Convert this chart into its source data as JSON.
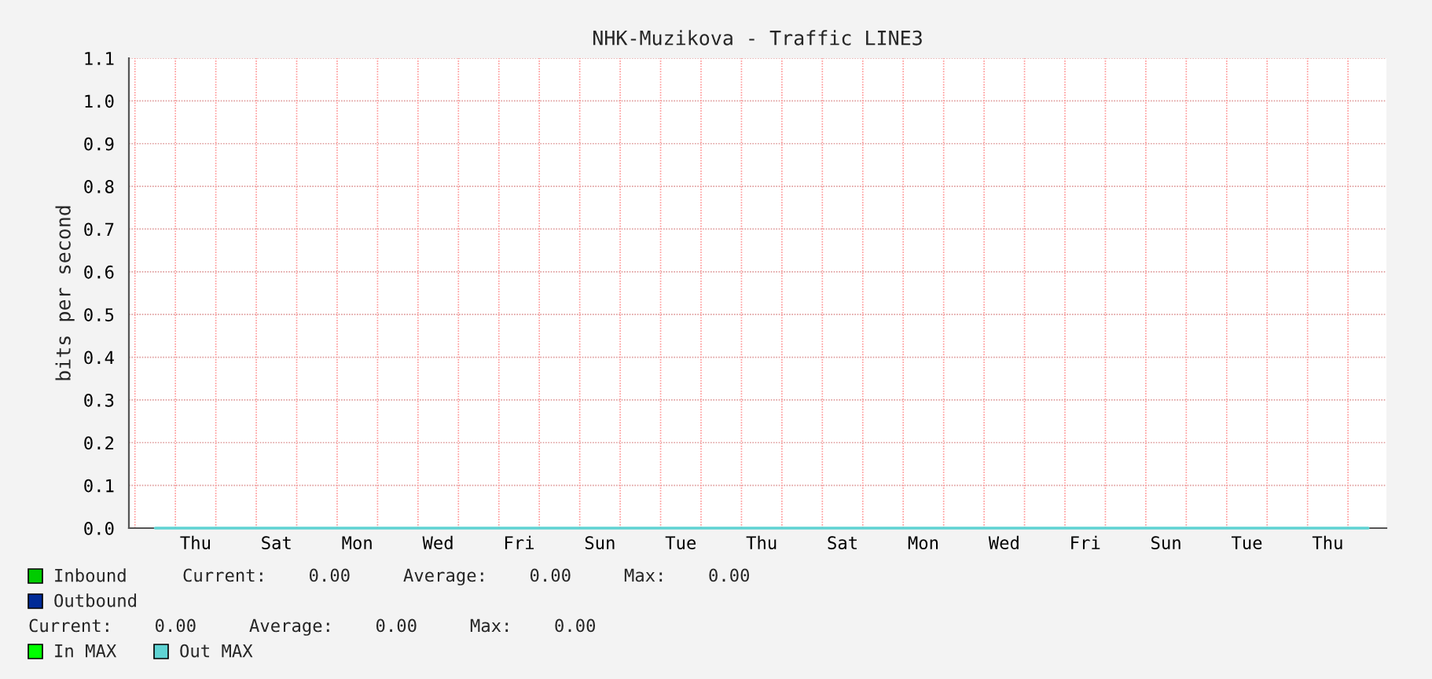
{
  "chart_data": {
    "type": "line",
    "title": "NHK-Muzikova - Traffic LINE3",
    "ylabel": "bits per second",
    "categories": [
      null,
      "Thu",
      null,
      "Sat",
      null,
      "Mon",
      null,
      "Wed",
      null,
      "Fri",
      null,
      "Sun",
      null,
      "Tue",
      null,
      "Thu",
      null,
      "Sat",
      null,
      "Mon",
      null,
      "Wed",
      null,
      "Fri",
      null,
      "Sun",
      null,
      "Tue",
      null,
      "Thu",
      null
    ],
    "ylim": [
      0,
      1.1
    ],
    "yticks": [
      {
        "value": 0,
        "label": "0.0"
      },
      {
        "value": 0.1,
        "label": "0.1"
      },
      {
        "value": 0.2,
        "label": "0.2"
      },
      {
        "value": 0.3,
        "label": "0.3"
      },
      {
        "value": 0.4,
        "label": "0.4"
      },
      {
        "value": 0.5,
        "label": "0.5"
      },
      {
        "value": 0.6,
        "label": "0.6"
      },
      {
        "value": 0.7,
        "label": "0.7"
      },
      {
        "value": 0.8,
        "label": "0.8"
      },
      {
        "value": 0.9,
        "label": "0.9"
      },
      {
        "value": 1.0,
        "label": "1.0"
      },
      {
        "value": 1.1,
        "label": "1.1"
      }
    ],
    "grid": true,
    "legend": "bottom",
    "series": [
      {
        "name": "Inbound",
        "color": "#00cc00",
        "values": [
          null,
          null,
          null,
          null,
          null,
          null,
          null,
          null,
          null,
          null,
          null,
          null,
          null,
          null,
          null,
          null,
          null,
          null,
          null,
          null,
          null,
          null,
          null,
          null,
          null,
          null,
          null,
          null,
          null,
          null,
          null
        ]
      },
      {
        "name": "Outbound",
        "color": "#002a97",
        "values": [
          null,
          null,
          null,
          null,
          null,
          null,
          null,
          null,
          null,
          null,
          null,
          null,
          null,
          null,
          null,
          null,
          null,
          null,
          null,
          null,
          null,
          null,
          null,
          null,
          null,
          null,
          null,
          null,
          null,
          null,
          null
        ]
      },
      {
        "name": "In MAX",
        "color": "#00ff00",
        "values": [
          null,
          null,
          null,
          null,
          null,
          null,
          null,
          null,
          null,
          null,
          null,
          null,
          null,
          null,
          null,
          null,
          null,
          null,
          null,
          null,
          null,
          null,
          null,
          null,
          null,
          null,
          null,
          null,
          null,
          null,
          null
        ]
      },
      {
        "name": "Out MAX",
        "color": "#5fd3d3",
        "values": [
          0,
          0,
          0,
          0,
          0,
          0,
          0,
          0,
          0,
          0,
          0,
          0,
          0,
          0,
          0,
          0,
          0,
          0,
          0,
          0,
          0,
          0,
          0,
          0,
          0,
          0,
          0,
          0,
          0,
          0,
          0
        ]
      }
    ],
    "annotations": [
      "Current:    0.00     Average:    0.00     Max:    0.00",
      "Current:    0.00     Average:    0.00     Max:    0.00"
    ]
  }
}
